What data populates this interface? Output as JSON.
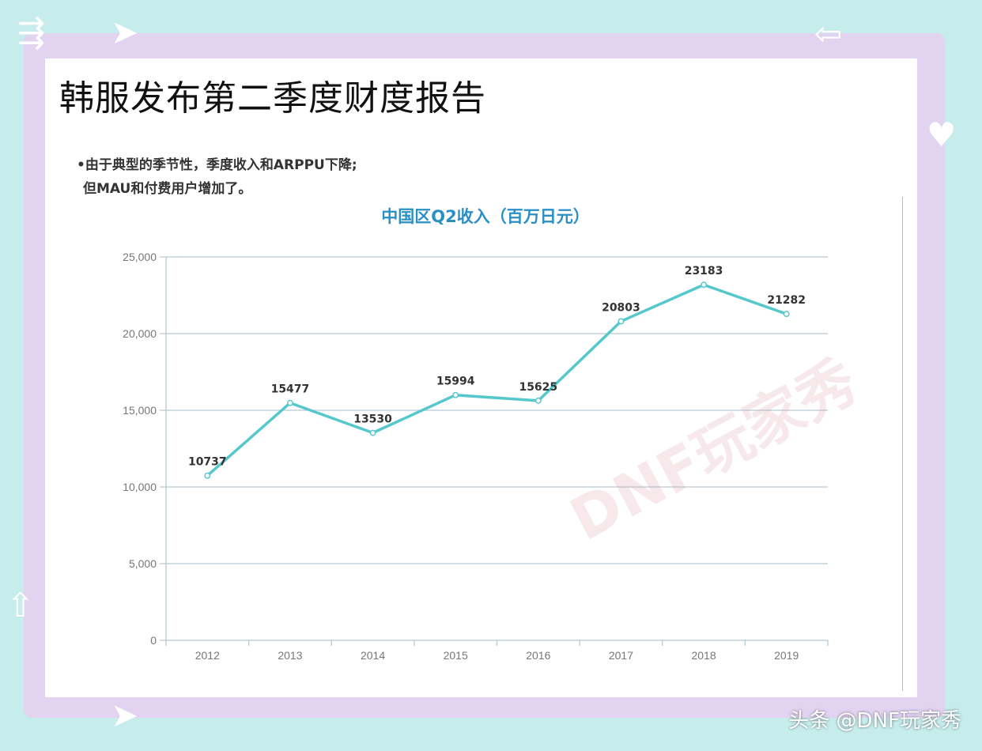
{
  "page_title": "韩服发布第二季度财度报告",
  "bullet": {
    "line1": "•由于典型的季节性，季度收入和ARPPU下降;",
    "line2": "但MAU和付费用户增加了。"
  },
  "watermark": "DNF玩家秀",
  "footer_tag": "头条 @DNF玩家秀",
  "colors": {
    "line": "#56c8cc",
    "grid": "#b6cad3",
    "title": "#2a8fc4",
    "frame": "#e2d3f1",
    "background": "#c6ecec"
  },
  "chart_data": {
    "type": "line",
    "title": "中国区Q2收入（百万日元）",
    "categories": [
      "2012",
      "2013",
      "2014",
      "2015",
      "2016",
      "2017",
      "2018",
      "2019"
    ],
    "values": [
      10737,
      15477,
      13530,
      15994,
      15625,
      20803,
      23183,
      21282
    ],
    "data_labels": [
      "10737",
      "15477",
      "13530",
      "15994",
      "15625",
      "20803",
      "23183",
      "21282"
    ],
    "y_ticks": [
      "0",
      "5,000",
      "10,000",
      "15,000",
      "20,000",
      "25,000"
    ],
    "ylim": [
      0,
      25000
    ],
    "grid": true,
    "legend": "none"
  }
}
